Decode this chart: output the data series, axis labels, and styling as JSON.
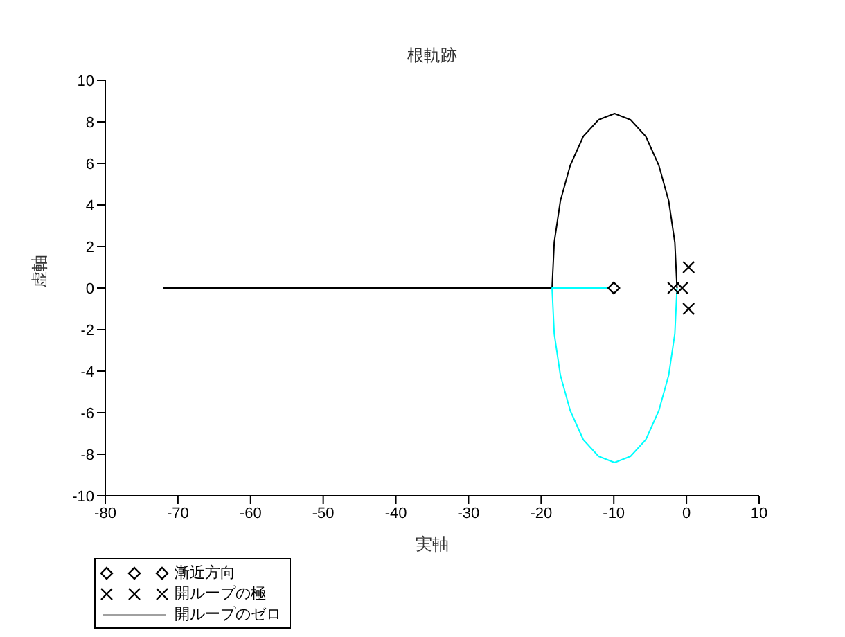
{
  "chart_data": {
    "type": "line",
    "title": "根軌跡",
    "xlabel": "実軸",
    "ylabel": "虚軸",
    "xlim": [
      -80,
      10
    ],
    "xticks": [
      -80,
      -70,
      -60,
      -50,
      -40,
      -30,
      -20,
      -10,
      0,
      10
    ],
    "ylim": [
      -10,
      10
    ],
    "yticks": [
      -10,
      -8,
      -6,
      -4,
      -2,
      0,
      2,
      4,
      6,
      8,
      10
    ],
    "grid": false,
    "legend": "bottom left",
    "series": [
      {
        "color": "#000000",
        "x": [
          -72,
          -18.5,
          -18.2,
          -17.35,
          -16.0,
          -14.2,
          -12.1,
          -9.9,
          -7.7,
          -5.6,
          -3.8,
          -2.45,
          -1.6,
          -1.3
        ],
        "values": [
          0,
          0,
          2.2,
          4.2,
          5.9,
          7.3,
          8.1,
          8.4,
          8.1,
          7.3,
          5.9,
          4.2,
          2.2,
          0
        ]
      },
      {
        "color": "#00ffff",
        "x": [
          -10,
          -18.5,
          -18.2,
          -17.35,
          -16.0,
          -14.2,
          -12.1,
          -9.9,
          -7.7,
          -5.6,
          -3.8,
          -2.45,
          -1.6,
          -1.3
        ],
        "values": [
          0,
          0,
          -2.2,
          -4.2,
          -5.9,
          -7.3,
          -8.1,
          -8.4,
          -8.1,
          -7.3,
          -5.9,
          -4.2,
          -2.2,
          0
        ]
      },
      {
        "type": "scatter",
        "name": "漸近方向",
        "marker": "diamond",
        "color": "#000000",
        "x": [
          -10
        ],
        "values": [
          0
        ]
      },
      {
        "type": "scatter",
        "name": "開ループの極",
        "marker": "cross",
        "color": "#000000",
        "x": [
          0.3,
          0.3,
          -1.8,
          -0.6
        ],
        "values": [
          1,
          -1,
          0,
          0
        ]
      },
      {
        "name": "開ループのゼロ",
        "color": "#a0a0a0"
      }
    ]
  }
}
